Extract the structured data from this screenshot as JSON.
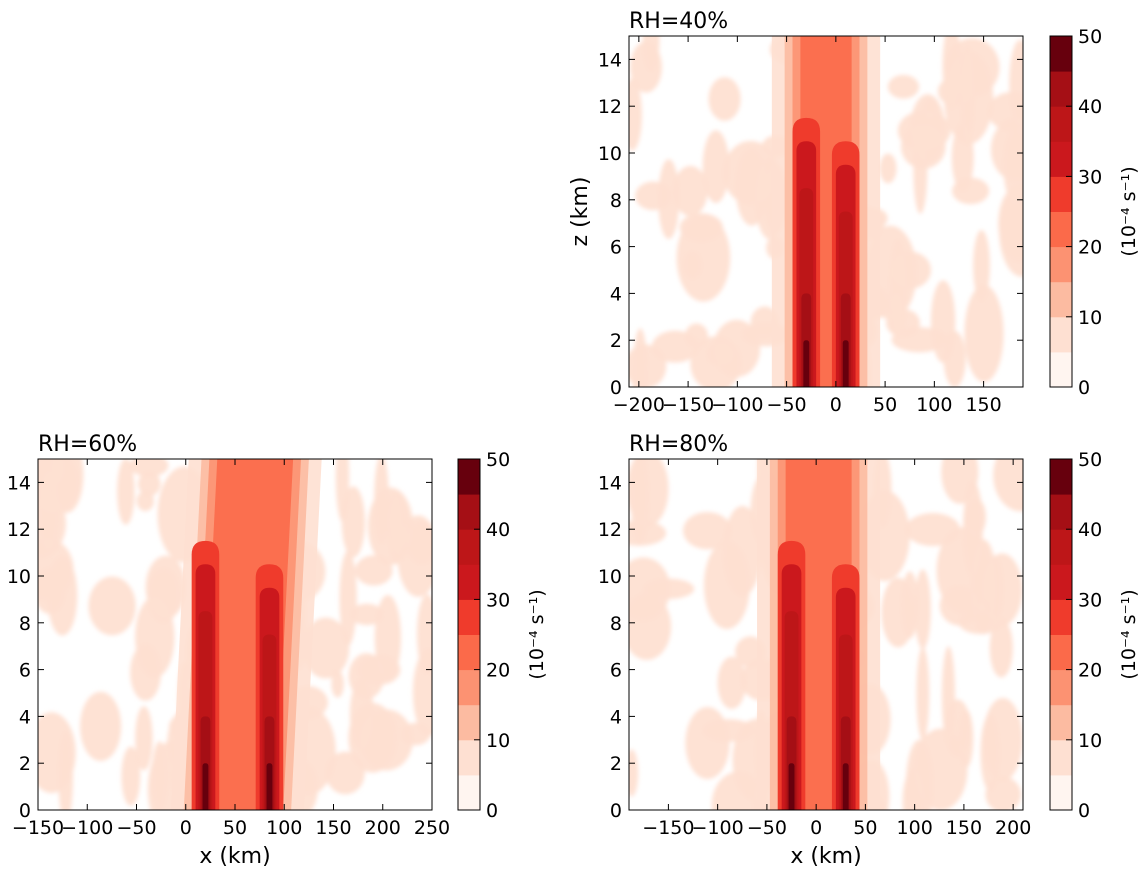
{
  "colorbar": {
    "levels": [
      0,
      5,
      10,
      15,
      20,
      25,
      30,
      35,
      40,
      45,
      50
    ],
    "tick_values": [
      0,
      10,
      20,
      30,
      40,
      50
    ],
    "colors": [
      "#fff5f0",
      "#fee0d2",
      "#fcbba1",
      "#fc9272",
      "#fb6a4a",
      "#ef3b2c",
      "#cb181d",
      "#bd1618",
      "#a50f15",
      "#67000d"
    ],
    "label": "(10⁻⁴ s⁻¹)"
  },
  "chart_data": [
    {
      "type": "heatmap",
      "title": "RH=40%",
      "xlabel": "",
      "ylabel": "z (km)",
      "xlim": [
        -210,
        190
      ],
      "ylim": [
        0,
        15
      ],
      "xticks": [
        -200,
        -150,
        -100,
        -50,
        0,
        50,
        100,
        150
      ],
      "yticks": [
        0,
        2,
        4,
        6,
        8,
        10,
        12,
        14
      ],
      "vlim": [
        0,
        50
      ],
      "core_column_centers_km": [
        -30,
        10
      ],
      "peak_value_approx": 45
    },
    {
      "type": "heatmap",
      "title": "RH=60%",
      "xlabel": "x (km)",
      "ylabel": "",
      "xlim": [
        -150,
        250
      ],
      "ylim": [
        0,
        15
      ],
      "xticks": [
        -150,
        -100,
        -50,
        0,
        50,
        100,
        150,
        200,
        250
      ],
      "yticks": [
        0,
        2,
        4,
        6,
        8,
        10,
        12,
        14
      ],
      "vlim": [
        0,
        50
      ],
      "core_column_centers_km": [
        20,
        85
      ],
      "peak_value_approx": 50
    },
    {
      "type": "heatmap",
      "title": "RH=80%",
      "xlabel": "x (km)",
      "ylabel": "",
      "xlim": [
        -190,
        210
      ],
      "ylim": [
        0,
        15
      ],
      "xticks": [
        -150,
        -100,
        -50,
        0,
        50,
        100,
        150,
        200
      ],
      "yticks": [
        0,
        2,
        4,
        6,
        8,
        10,
        12,
        14
      ],
      "vlim": [
        0,
        50
      ],
      "core_column_centers_km": [
        -25,
        30
      ],
      "peak_value_approx": 50
    }
  ]
}
